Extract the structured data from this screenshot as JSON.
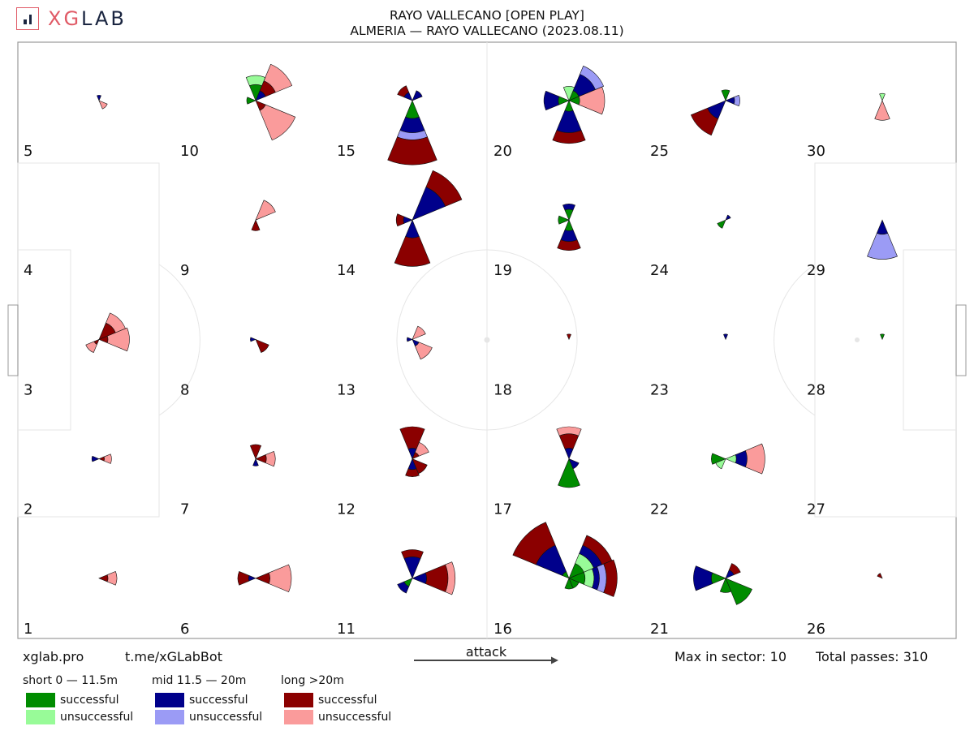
{
  "brand": {
    "name_x": "XG",
    "name_rest": "LAB",
    "accent": "#e05a66",
    "dark": "#1a2540"
  },
  "title": {
    "line1": "RAYO VALLECANO [OPEN PLAY]",
    "line2": "ALMERIA — RAYO VALLECANO (2023.08.11)"
  },
  "footer": {
    "site": "xglab.pro",
    "bot": "t.me/xGLabBot",
    "attack_label": "attack",
    "max_label": "Max in sector: 10",
    "total_label": "Total passes: 310"
  },
  "legend": [
    {
      "title": "short 0 — 11.5m",
      "items": [
        {
          "label": "successful",
          "color": "#008c00"
        },
        {
          "label": "unsuccessful",
          "color": "#98fb98"
        }
      ]
    },
    {
      "title": "mid 11.5 — 20m",
      "items": [
        {
          "label": "successful",
          "color": "#00008b"
        },
        {
          "label": "unsuccessful",
          "color": "#9b9bf5"
        }
      ]
    },
    {
      "title": "long >20m",
      "items": [
        {
          "label": "successful",
          "color": "#8b0000"
        },
        {
          "label": "unsuccessful",
          "color": "#fa9b9b"
        }
      ]
    }
  ],
  "chart_data": {
    "type": "polar-rose-grid",
    "max_in_sector": 10,
    "total_passes": 310,
    "direction_order": [
      "E",
      "NE",
      "N",
      "NW",
      "W",
      "SW",
      "S",
      "SE"
    ],
    "category_order": [
      "short_success",
      "short_fail",
      "mid_success",
      "mid_fail",
      "long_success",
      "long_fail"
    ],
    "zones": [
      {
        "zone": 1,
        "sectors": {
          "E": [
            0,
            0,
            0,
            0,
            0.5,
            0.5
          ]
        }
      },
      {
        "zone": 2,
        "sectors": {
          "E": [
            0,
            0,
            0,
            0,
            0.3,
            0.4
          ],
          "W": [
            0,
            0,
            0.4,
            0,
            0,
            0
          ]
        }
      },
      {
        "zone": 3,
        "sectors": {
          "E": [
            0,
            0,
            0,
            0,
            0.5,
            1.2
          ],
          "NE": [
            0,
            0,
            0,
            0,
            1.0,
            0.6
          ],
          "SW": [
            0,
            0,
            0,
            0,
            0.3,
            0.5
          ]
        }
      },
      {
        "zone": 4,
        "sectors": {}
      },
      {
        "zone": 5,
        "sectors": {
          "N": [
            0,
            0,
            0.3,
            0,
            0,
            0
          ],
          "SE": [
            0,
            0,
            0,
            0,
            0,
            0.5
          ]
        }
      },
      {
        "zone": 6,
        "sectors": {
          "E": [
            0,
            0,
            0,
            0,
            0.8,
            1.2
          ],
          "W": [
            0,
            0,
            0.4,
            0,
            0.6,
            0
          ]
        }
      },
      {
        "zone": 7,
        "sectors": {
          "N": [
            0,
            0,
            0,
            0,
            0.8,
            0
          ],
          "E": [
            0,
            0,
            0,
            0,
            0.6,
            0.5
          ],
          "S": [
            0,
            0,
            0.4,
            0,
            0,
            0
          ]
        }
      },
      {
        "zone": 8,
        "sectors": {
          "SE": [
            0,
            0,
            0,
            0,
            0.8,
            0
          ],
          "W": [
            0,
            0,
            0.3,
            0,
            0,
            0
          ]
        }
      },
      {
        "zone": 9,
        "sectors": {
          "NE": [
            0,
            0,
            0,
            0,
            0,
            1.2
          ],
          "S": [
            0,
            0,
            0,
            0,
            0.6,
            0
          ]
        }
      },
      {
        "zone": 10,
        "sectors": {
          "NE": [
            0,
            0,
            0.6,
            0,
            0.6,
            1.0
          ],
          "N": [
            0.9,
            0.5,
            0,
            0,
            0,
            0
          ],
          "SE": [
            0,
            0,
            0,
            0,
            0.6,
            1.8
          ],
          "W": [
            0.5,
            0,
            0,
            0,
            0,
            0
          ]
        }
      },
      {
        "zone": 11,
        "sectors": {
          "N": [
            0,
            0,
            1.2,
            0,
            0.4,
            0
          ],
          "E": [
            0,
            0,
            0.8,
            0,
            1.2,
            0.4
          ],
          "SW": [
            0.5,
            0,
            0.4,
            0,
            0,
            0
          ]
        }
      },
      {
        "zone": 12,
        "sectors": {
          "N": [
            0,
            0,
            0.6,
            0,
            1.2,
            0
          ],
          "S": [
            0,
            0,
            0.6,
            0,
            0.4,
            0
          ],
          "NE": [
            0,
            0,
            0,
            0,
            0.4,
            0.6
          ],
          "SE": [
            0,
            0,
            0,
            0,
            0.9,
            0
          ]
        }
      },
      {
        "zone": 13,
        "sectors": {
          "NE": [
            0,
            0,
            0,
            0,
            0,
            0.8
          ],
          "SE": [
            0,
            0,
            0.4,
            0,
            0,
            0.8
          ],
          "W": [
            0,
            0,
            0.3,
            0,
            0,
            0
          ]
        }
      },
      {
        "zone": 14,
        "sectors": {
          "NE": [
            0,
            0,
            2.0,
            0,
            1.0,
            0
          ],
          "S": [
            0,
            0,
            1.0,
            0,
            1.6,
            0
          ],
          "W": [
            0,
            0,
            0.5,
            0,
            0.4,
            0
          ]
        }
      },
      {
        "zone": 15,
        "sectors": {
          "S": [
            1.0,
            0,
            0.8,
            0.4,
            1.4,
            0
          ],
          "NW": [
            0,
            0,
            0.5,
            0,
            0.4,
            0
          ],
          "NE": [
            0,
            0,
            0.6,
            0,
            0,
            0
          ]
        }
      },
      {
        "zone": 16,
        "sectors": {
          "NW": [
            0.4,
            0,
            1.6,
            0,
            1.4,
            0
          ],
          "E": [
            0.9,
            0.5,
            0.3,
            0.4,
            0.6,
            0
          ],
          "NE": [
            0.9,
            0.6,
            0.5,
            0,
            0.6,
            0
          ],
          "S": [
            0.6,
            0,
            0,
            0,
            0,
            0
          ],
          "SE": [
            0.6,
            0,
            0,
            0,
            0,
            0
          ]
        }
      },
      {
        "zone": 17,
        "sectors": {
          "S": [
            1.6,
            0,
            0,
            0,
            0,
            0
          ],
          "N": [
            0,
            0,
            0.6,
            0,
            0.8,
            0.4
          ],
          "SE": [
            0,
            0,
            0.6,
            0,
            0,
            0
          ]
        }
      },
      {
        "zone": 18,
        "sectors": {
          "N": [
            0,
            0,
            0,
            0,
            0.3,
            0
          ]
        }
      },
      {
        "zone": 19,
        "sectors": {
          "S": [
            0.6,
            0,
            0.6,
            0,
            0.5,
            0
          ],
          "N": [
            0.6,
            0,
            0.3,
            0,
            0,
            0
          ],
          "W": [
            0.6,
            0,
            0,
            0,
            0,
            0
          ]
        }
      },
      {
        "zone": 20,
        "sectors": {
          "NE": [
            0.6,
            0,
            1.0,
            0.5,
            0,
            0
          ],
          "E": [
            0.6,
            0,
            0,
            0,
            0,
            1.4
          ],
          "S": [
            0.6,
            0,
            1.2,
            0,
            0.6,
            0
          ],
          "N": [
            0,
            0.8,
            0,
            0,
            0,
            0
          ],
          "W": [
            0.6,
            0,
            0.8,
            0,
            0,
            0
          ]
        }
      },
      {
        "zone": 21,
        "sectors": {
          "SE": [
            1.6,
            0,
            0,
            0,
            0,
            0
          ],
          "W": [
            0.8,
            0,
            1.0,
            0,
            0,
            0
          ],
          "S": [
            0.8,
            0,
            0,
            0,
            0,
            0
          ],
          "NE": [
            0,
            0,
            0.5,
            0,
            0.4,
            0
          ]
        }
      },
      {
        "zone": 22,
        "sectors": {
          "E": [
            0,
            0.6,
            0.6,
            0,
            0,
            1.0
          ],
          "W": [
            0.8,
            0,
            0,
            0,
            0,
            0
          ],
          "SW": [
            0,
            0.6,
            0,
            0,
            0,
            0
          ]
        }
      },
      {
        "zone": 23,
        "sectors": {
          "N": [
            0,
            0,
            0.3,
            0,
            0,
            0
          ]
        }
      },
      {
        "zone": 24,
        "sectors": {
          "NE": [
            0,
            0,
            0.3,
            0,
            0,
            0
          ],
          "SW": [
            0.5,
            0,
            0,
            0,
            0,
            0
          ]
        }
      },
      {
        "zone": 25,
        "sectors": {
          "SW": [
            0,
            0,
            1.1,
            0,
            1.0,
            0
          ],
          "N": [
            0.6,
            0,
            0,
            0,
            0,
            0
          ],
          "E": [
            0,
            0,
            0.5,
            0.3,
            0,
            0
          ]
        }
      },
      {
        "zone": 26,
        "sectors": {
          "NW": [
            0,
            0,
            0,
            0,
            0.3,
            0
          ]
        }
      },
      {
        "zone": 27,
        "sectors": {}
      },
      {
        "zone": 28,
        "sectors": {
          "N": [
            0.3,
            0,
            0,
            0,
            0,
            0
          ]
        }
      },
      {
        "zone": 29,
        "sectors": {
          "S": [
            0,
            0,
            0.8,
            1.4,
            0,
            0
          ]
        }
      },
      {
        "zone": 30,
        "sectors": {
          "S": [
            0,
            0,
            0,
            0,
            0,
            1.1
          ],
          "N": [
            0,
            0.4,
            0,
            0,
            0,
            0
          ]
        }
      }
    ]
  }
}
